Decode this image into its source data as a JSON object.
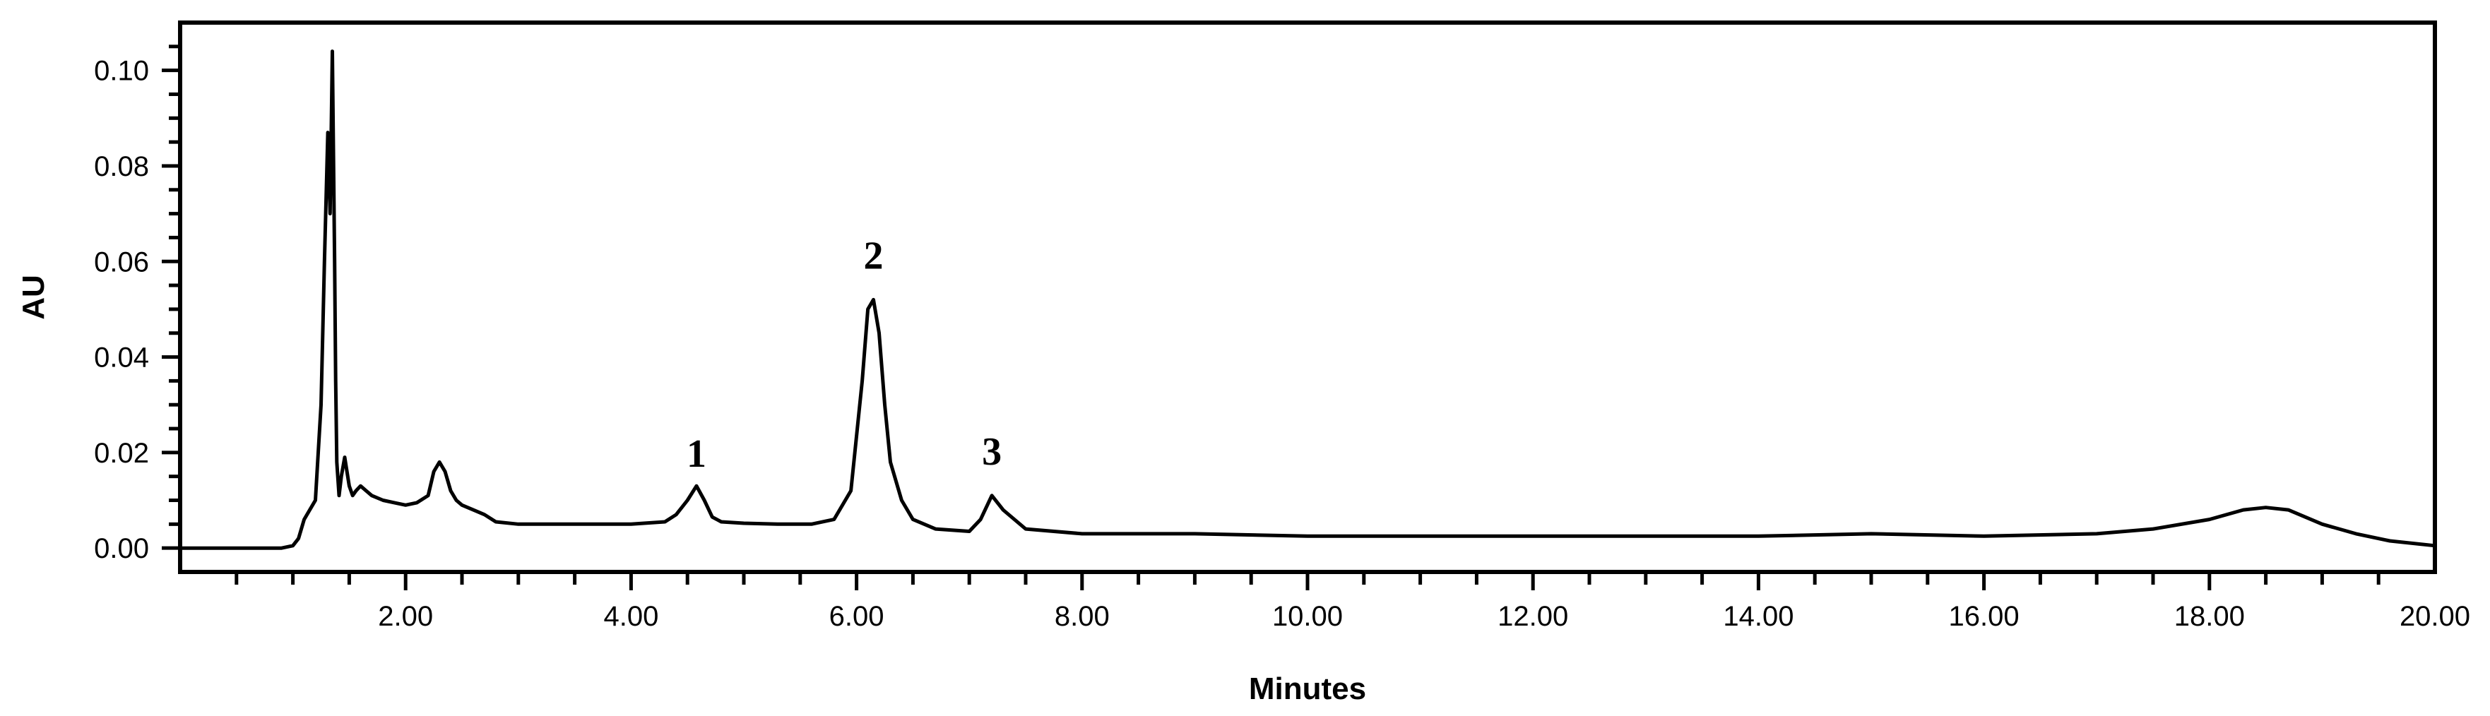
{
  "chart_data": {
    "type": "line",
    "title": "",
    "xlabel": "Minutes",
    "ylabel": "AU",
    "xlim": [
      0,
      20
    ],
    "ylim": [
      -0.005,
      0.11
    ],
    "x_ticks": [
      {
        "value": 2,
        "label": "2.00"
      },
      {
        "value": 4,
        "label": "4.00"
      },
      {
        "value": 6,
        "label": "6.00"
      },
      {
        "value": 8,
        "label": "8.00"
      },
      {
        "value": 10,
        "label": "10.00"
      },
      {
        "value": 12,
        "label": "12.00"
      },
      {
        "value": 14,
        "label": "14.00"
      },
      {
        "value": 16,
        "label": "16.00"
      },
      {
        "value": 18,
        "label": "18.00"
      },
      {
        "value": 20,
        "label": "20.00"
      }
    ],
    "y_ticks": [
      {
        "value": 0.0,
        "label": "0.00"
      },
      {
        "value": 0.02,
        "label": "0.02"
      },
      {
        "value": 0.04,
        "label": "0.04"
      },
      {
        "value": 0.06,
        "label": "0.06"
      },
      {
        "value": 0.08,
        "label": "0.08"
      },
      {
        "value": 0.1,
        "label": "0.10"
      }
    ],
    "grid": false,
    "legend": "none",
    "line_color": "#000000",
    "series": [
      {
        "x": [
          0.0,
          0.9,
          1.0,
          1.05,
          1.1,
          1.15,
          1.2,
          1.25,
          1.28,
          1.31,
          1.33,
          1.35,
          1.37,
          1.38,
          1.39,
          1.41,
          1.43,
          1.46,
          1.5,
          1.53,
          1.56,
          1.6,
          1.65,
          1.7,
          1.8,
          1.9,
          2.0,
          2.1,
          2.2,
          2.25,
          2.3,
          2.35,
          2.4,
          2.45,
          2.5,
          2.6,
          2.7,
          2.8,
          3.0,
          3.5,
          4.0,
          4.3,
          4.4,
          4.5,
          4.58,
          4.65,
          4.72,
          4.8,
          5.0,
          5.3,
          5.6,
          5.8,
          5.95,
          6.05,
          6.1,
          6.15,
          6.2,
          6.25,
          6.3,
          6.4,
          6.5,
          6.7,
          7.0,
          7.1,
          7.2,
          7.3,
          7.5,
          8.0,
          9.0,
          10.0,
          11.0,
          12.0,
          13.0,
          14.0,
          15.0,
          16.0,
          17.0,
          17.5,
          18.0,
          18.3,
          18.5,
          18.7,
          19.0,
          19.3,
          19.6,
          20.0
        ],
        "y": [
          0.0,
          0.0,
          0.0005,
          0.002,
          0.006,
          0.008,
          0.01,
          0.03,
          0.06,
          0.087,
          0.07,
          0.104,
          0.06,
          0.035,
          0.018,
          0.011,
          0.015,
          0.019,
          0.013,
          0.011,
          0.012,
          0.013,
          0.012,
          0.011,
          0.01,
          0.0095,
          0.009,
          0.0095,
          0.011,
          0.016,
          0.018,
          0.016,
          0.012,
          0.01,
          0.009,
          0.008,
          0.007,
          0.0055,
          0.005,
          0.005,
          0.005,
          0.0055,
          0.007,
          0.01,
          0.013,
          0.01,
          0.0065,
          0.0055,
          0.0052,
          0.005,
          0.005,
          0.006,
          0.012,
          0.035,
          0.05,
          0.052,
          0.045,
          0.03,
          0.018,
          0.01,
          0.006,
          0.004,
          0.0035,
          0.006,
          0.011,
          0.008,
          0.004,
          0.003,
          0.003,
          0.0025,
          0.0025,
          0.0025,
          0.0025,
          0.0025,
          0.003,
          0.0025,
          0.003,
          0.004,
          0.006,
          0.008,
          0.0085,
          0.008,
          0.005,
          0.003,
          0.0015,
          0.0005
        ]
      }
    ],
    "annotations": [
      {
        "text": "1",
        "x": 4.58,
        "y": 0.017
      },
      {
        "text": "2",
        "x": 6.15,
        "y": 0.0585
      },
      {
        "text": "3",
        "x": 7.2,
        "y": 0.0175
      }
    ]
  }
}
